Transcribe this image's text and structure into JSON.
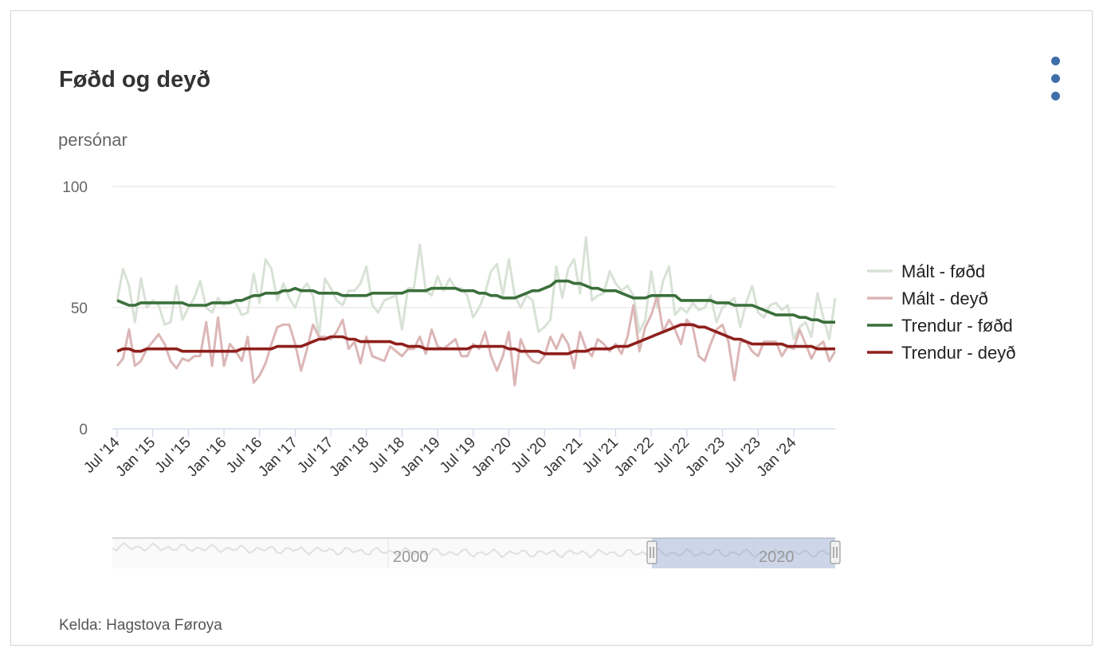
{
  "header": {
    "title": "Føðd og deyð",
    "menu_icon": "more-vertical-icon"
  },
  "footer": {
    "source": "Kelda: Hagstova Føroya"
  },
  "navigator": {
    "labels": [
      "2000",
      "2020"
    ]
  },
  "chart_data": {
    "type": "line",
    "title": "Føðd og deyð",
    "ylabel": "persónar",
    "xlabel": "",
    "ylim": [
      0,
      100
    ],
    "yticks": [
      0,
      50,
      100
    ],
    "x_start": "Jul '14",
    "x_end": "Aug '24",
    "x_tick_labels": [
      "Jul '14",
      "Jan '15",
      "Jul '15",
      "Jan '16",
      "Jul '16",
      "Jan '17",
      "Jul '17",
      "Jan '18",
      "Jul '18",
      "Jan '19",
      "Jul '19",
      "Jan '20",
      "Jul '20",
      "Jan '21",
      "Jul '21",
      "Jan '22",
      "Jul '22",
      "Jan '23",
      "Jul '23",
      "Jan '24"
    ],
    "grid": true,
    "legend_position": "right",
    "series": [
      {
        "name": "Mált - føðd",
        "color": "#d8e2d6",
        "values": [
          53,
          66,
          59,
          44,
          62,
          50,
          53,
          51,
          43,
          44,
          59,
          45,
          50,
          54,
          61,
          50,
          48,
          54,
          51,
          53,
          52,
          47,
          48,
          64,
          52,
          70,
          66,
          53,
          60,
          54,
          50,
          57,
          60,
          55,
          38,
          62,
          58,
          53,
          51,
          57,
          57,
          60,
          67,
          51,
          48,
          53,
          54,
          55,
          41,
          58,
          58,
          76,
          57,
          55,
          63,
          57,
          62,
          58,
          58,
          55,
          46,
          50,
          56,
          65,
          68,
          55,
          70,
          55,
          50,
          55,
          53,
          40,
          42,
          45,
          67,
          54,
          66,
          70,
          56,
          79,
          53,
          55,
          56,
          65,
          60,
          57,
          59,
          55,
          40,
          45,
          65,
          50,
          61,
          67,
          47,
          50,
          48,
          52,
          49,
          50,
          55,
          44,
          50,
          52,
          54,
          42,
          52,
          59,
          48,
          46,
          51,
          52,
          49,
          51,
          37,
          42,
          44,
          38,
          56,
          46,
          37,
          54
        ]
      },
      {
        "name": "Mált - deyð",
        "color": "#dcb6b6",
        "values": [
          26,
          29,
          41,
          26,
          28,
          33,
          36,
          39,
          35,
          28,
          25,
          29,
          28,
          30,
          30,
          44,
          26,
          46,
          26,
          35,
          32,
          28,
          38,
          19,
          22,
          27,
          35,
          42,
          43,
          43,
          35,
          24,
          33,
          43,
          38,
          38,
          37,
          40,
          45,
          33,
          36,
          27,
          38,
          30,
          29,
          28,
          34,
          32,
          30,
          33,
          33,
          38,
          31,
          41,
          34,
          33,
          35,
          37,
          30,
          30,
          35,
          33,
          40,
          30,
          24,
          30,
          40,
          18,
          37,
          31,
          28,
          27,
          30,
          38,
          33,
          39,
          35,
          25,
          40,
          33,
          30,
          37,
          35,
          32,
          35,
          31,
          38,
          51,
          32,
          42,
          47,
          55,
          40,
          45,
          41,
          35,
          45,
          42,
          30,
          28,
          35,
          41,
          43,
          36,
          20,
          36,
          36,
          32,
          30,
          36,
          36,
          36,
          30,
          34,
          33,
          41,
          35,
          29,
          34,
          36,
          28,
          32
        ]
      },
      {
        "name": "Trendur - føðd",
        "color": "#3a6f3a",
        "values": [
          53,
          52,
          51,
          51,
          52,
          52,
          52,
          52,
          52,
          52,
          52,
          52,
          51,
          51,
          51,
          51,
          52,
          52,
          52,
          52,
          53,
          53,
          54,
          55,
          55,
          56,
          56,
          56,
          57,
          57,
          58,
          57,
          57,
          57,
          56,
          56,
          56,
          56,
          55,
          55,
          55,
          55,
          55,
          56,
          56,
          56,
          56,
          56,
          56,
          57,
          57,
          57,
          57,
          58,
          58,
          58,
          58,
          58,
          57,
          57,
          57,
          56,
          56,
          55,
          55,
          54,
          54,
          54,
          55,
          56,
          57,
          57,
          58,
          59,
          61,
          61,
          61,
          60,
          60,
          59,
          58,
          58,
          57,
          57,
          57,
          56,
          55,
          54,
          54,
          54,
          55,
          55,
          55,
          55,
          55,
          53,
          53,
          53,
          53,
          53,
          53,
          52,
          52,
          52,
          51,
          51,
          51,
          51,
          50,
          49,
          48,
          47,
          47,
          47,
          47,
          46,
          46,
          45,
          45,
          44,
          44,
          44
        ]
      },
      {
        "name": "Trendur - deyð",
        "color": "#8e1f1b",
        "values": [
          32,
          33,
          33,
          32,
          32,
          33,
          33,
          33,
          33,
          33,
          33,
          32,
          32,
          32,
          32,
          32,
          32,
          32,
          32,
          32,
          32,
          33,
          33,
          33,
          33,
          33,
          33,
          34,
          34,
          34,
          34,
          34,
          35,
          36,
          37,
          37,
          38,
          38,
          38,
          37,
          37,
          36,
          36,
          36,
          36,
          36,
          36,
          35,
          35,
          34,
          34,
          34,
          33,
          33,
          33,
          33,
          33,
          33,
          33,
          33,
          34,
          34,
          34,
          34,
          34,
          34,
          33,
          33,
          32,
          32,
          32,
          32,
          31,
          31,
          31,
          31,
          31,
          32,
          32,
          32,
          33,
          33,
          33,
          33,
          34,
          34,
          34,
          35,
          36,
          37,
          38,
          39,
          40,
          41,
          42,
          43,
          43,
          43,
          42,
          42,
          41,
          40,
          39,
          38,
          37,
          37,
          36,
          35,
          35,
          35,
          35,
          35,
          35,
          34,
          34,
          34,
          34,
          34,
          33,
          33,
          33,
          33
        ]
      }
    ]
  }
}
